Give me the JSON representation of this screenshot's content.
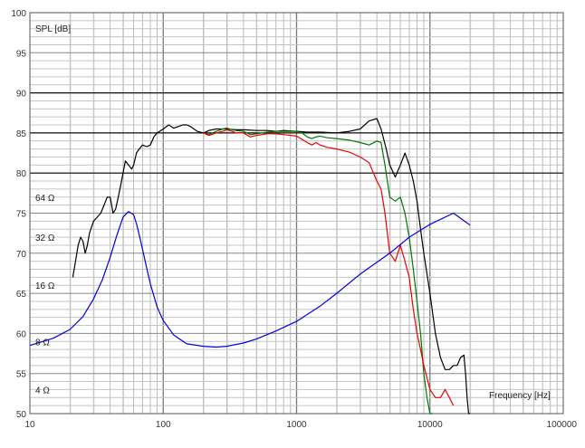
{
  "chart_data": {
    "type": "line",
    "ylabel": "SPL [dB]",
    "xlabel": "Frequency [Hz]",
    "x_scale": "log",
    "xlim": [
      10,
      100000
    ],
    "ylim": [
      50,
      100
    ],
    "grid": true,
    "x_ticks": [
      {
        "value": 10,
        "label": "10"
      },
      {
        "value": 100,
        "label": "100"
      },
      {
        "value": 1000,
        "label": "1000"
      },
      {
        "value": 10000,
        "label": "10000"
      },
      {
        "value": 100000,
        "label": "100000"
      }
    ],
    "y_ticks": [
      {
        "value": 50,
        "label": "50"
      },
      {
        "value": 55,
        "label": "55"
      },
      {
        "value": 60,
        "label": "60"
      },
      {
        "value": 65,
        "label": "65"
      },
      {
        "value": 70,
        "label": "70"
      },
      {
        "value": 75,
        "label": "75"
      },
      {
        "value": 80,
        "label": "80"
      },
      {
        "value": 85,
        "label": "85"
      },
      {
        "value": 90,
        "label": "90"
      },
      {
        "value": 95,
        "label": "95"
      },
      {
        "value": 100,
        "label": "100"
      }
    ],
    "bold_y_lines": [
      80,
      85,
      90
    ],
    "impedance_labels": [
      {
        "label": "64 Ω",
        "y": 77
      },
      {
        "label": "32 Ω",
        "y": 72
      },
      {
        "label": "16 Ω",
        "y": 66
      },
      {
        "label": "8 Ω",
        "y": 59
      },
      {
        "label": "4 Ω",
        "y": 53
      }
    ],
    "series": [
      {
        "color": "#000000",
        "x": [
          21,
          22,
          23,
          24,
          25,
          26,
          27,
          28,
          30,
          32,
          34,
          36,
          38,
          40,
          42,
          44,
          46,
          48,
          50,
          52,
          55,
          58,
          60,
          63,
          66,
          70,
          75,
          80,
          85,
          90,
          100,
          110,
          120,
          130,
          140,
          150,
          160,
          180,
          200,
          220,
          250,
          300,
          350,
          400,
          500,
          600,
          700,
          800,
          1000,
          1200,
          1500,
          2000,
          2500,
          3000,
          3500,
          4000,
          4300,
          4700,
          5000,
          5500,
          6000,
          6500,
          7000,
          7500,
          8000,
          8500,
          9000,
          10000,
          11000,
          12000,
          13000,
          14000,
          15000,
          16000,
          17000,
          18000,
          18500,
          19000,
          19500,
          20000
        ],
        "y": [
          67,
          69,
          71,
          72,
          71.5,
          70,
          71,
          72.5,
          74,
          74.5,
          75,
          76,
          77,
          77,
          75,
          75.5,
          77,
          78.5,
          80,
          81.5,
          81,
          80.5,
          81,
          82.5,
          83,
          83.5,
          83.3,
          83.5,
          84.5,
          85,
          85.5,
          86,
          85.6,
          85.8,
          86,
          86,
          85.8,
          85.2,
          85,
          85.3,
          85.5,
          85.5,
          85.4,
          85.4,
          85.3,
          85.3,
          85.2,
          85.3,
          85.2,
          85.1,
          85.1,
          85,
          85.2,
          85.5,
          86.5,
          86.8,
          85.5,
          83,
          81,
          79.5,
          81,
          82.5,
          81,
          79,
          76.5,
          73,
          70,
          65,
          60,
          57,
          55.5,
          55.5,
          56,
          56,
          57,
          57.3,
          55,
          52,
          50,
          50
        ]
      },
      {
        "color": "#007700",
        "x": [
          200,
          220,
          250,
          280,
          300,
          330,
          350,
          400,
          450,
          500,
          600,
          700,
          800,
          1000,
          1100,
          1200,
          1300,
          1400,
          1500,
          1700,
          2000,
          2500,
          3000,
          3500,
          4000,
          4300,
          4600,
          5000,
          5500,
          6000,
          6500,
          7000,
          7500,
          8000,
          8500,
          9000,
          9500,
          10000,
          10500
        ],
        "y": [
          85,
          84.8,
          85.2,
          85.5,
          85.6,
          85.4,
          85.3,
          85.2,
          84.8,
          84.9,
          85.1,
          85.2,
          85.2,
          85.2,
          85,
          84.5,
          84.3,
          84.5,
          84.6,
          84.4,
          84.3,
          84.1,
          83.8,
          83.5,
          84,
          83.8,
          81,
          77,
          76.5,
          77,
          75,
          72,
          68,
          64,
          60,
          55,
          52,
          50,
          50
        ]
      },
      {
        "color": "#ee0000",
        "x": [
          200,
          220,
          250,
          280,
          300,
          330,
          350,
          400,
          450,
          500,
          600,
          700,
          800,
          1000,
          1100,
          1200,
          1300,
          1400,
          1500,
          1700,
          2000,
          2500,
          3000,
          3500,
          4000,
          4300,
          4600,
          5000,
          5500,
          6000,
          6500,
          7000,
          7500,
          8000,
          8500,
          9000,
          10000,
          11000,
          12000,
          13000,
          14000,
          15000
        ],
        "y": [
          85,
          84.7,
          85,
          85.2,
          85.4,
          85.2,
          85,
          85,
          84.5,
          84.7,
          84.9,
          84.9,
          84.8,
          84.6,
          84.2,
          83.8,
          83.5,
          83.8,
          83.5,
          83.2,
          83,
          82.6,
          82,
          81.3,
          79,
          78,
          75,
          70,
          69,
          71,
          69,
          67,
          63,
          60,
          58,
          56,
          53,
          52,
          52,
          53,
          52,
          51
        ]
      },
      {
        "color": "#0000dd",
        "x": [
          10,
          15,
          20,
          25,
          30,
          35,
          40,
          45,
          50,
          55,
          60,
          63,
          66,
          70,
          75,
          80,
          90,
          100,
          120,
          150,
          200,
          250,
          300,
          400,
          500,
          700,
          1000,
          1500,
          2000,
          3000,
          5000,
          7000,
          10000,
          15000,
          20000
        ],
        "y": [
          58.5,
          59.4,
          60.5,
          62.1,
          64.3,
          66.7,
          69.5,
          72.3,
          74.5,
          75.2,
          74.8,
          73.7,
          72.3,
          70.5,
          68.2,
          66.2,
          63.3,
          61.6,
          59.8,
          58.7,
          58.4,
          58.3,
          58.4,
          58.8,
          59.3,
          60.3,
          61.5,
          63.4,
          65,
          67.4,
          70,
          72,
          73.6,
          75,
          73.5
        ]
      }
    ]
  }
}
